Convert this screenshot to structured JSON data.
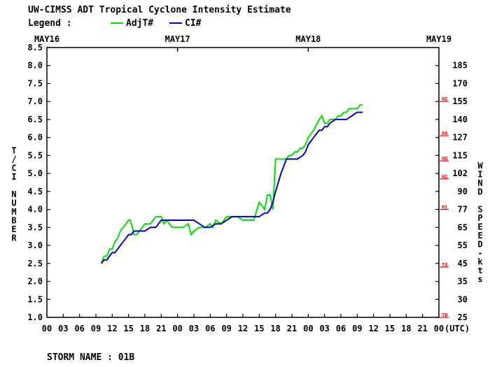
{
  "chart_data": {
    "type": "line",
    "title": "UW-CIMSS ADT Tropical Cyclone Intensity Estimate",
    "legend": {
      "label": "Legend :",
      "placement": "top-left",
      "entries": [
        {
          "name": "AdjT#",
          "color": "#00e000"
        },
        {
          "name": "CI#",
          "color": "#0000c8"
        }
      ]
    },
    "footer": "STORM NAME : 01B",
    "date_labels": [
      {
        "label": "MAY16",
        "hour": 0
      },
      {
        "label": "MAY17",
        "hour": 24
      },
      {
        "label": "MAY18",
        "hour": 48
      },
      {
        "label": "MAY19",
        "hour": 72
      }
    ],
    "xlabel": "(UTC)",
    "x_tick_labels": [
      "00",
      "03",
      "06",
      "09",
      "12",
      "15",
      "18",
      "21",
      "00",
      "03",
      "06",
      "09",
      "12",
      "15",
      "18",
      "21",
      "00",
      "03",
      "06",
      "09",
      "12",
      "15",
      "18",
      "21",
      "00"
    ],
    "xlim": [
      0,
      72
    ],
    "ylabel_left": "T/CI NUMBER",
    "ylim_left": [
      1.0,
      8.5
    ],
    "y_left_ticks": [
      "1.0",
      "1.5",
      "2.0",
      "2.5",
      "3.0",
      "3.5",
      "4.0",
      "4.5",
      "5.0",
      "5.5",
      "6.0",
      "6.5",
      "7.0",
      "7.5",
      "8.0",
      "8.5"
    ],
    "ylabel_right": "WIND SPEED-kts",
    "y_right_ticks": [
      "25",
      "30",
      "35",
      "45",
      "55",
      "65",
      "77",
      "90",
      "102",
      "115",
      "127",
      "140",
      "155",
      "170",
      "185"
    ],
    "y_right_tick_positions": [
      1.0,
      1.5,
      2.0,
      2.5,
      3.0,
      3.5,
      4.0,
      4.5,
      5.0,
      5.5,
      6.0,
      6.5,
      7.0,
      7.5,
      8.0
    ],
    "categories_right": [
      {
        "label": "TD",
        "value": 1.0
      },
      {
        "label": "TS",
        "value": 2.4
      },
      {
        "label": "H1",
        "value": 4.0
      },
      {
        "label": "H2",
        "value": 4.85
      },
      {
        "label": "H3",
        "value": 5.35
      },
      {
        "label": "H4",
        "value": 6.05
      },
      {
        "label": "H5",
        "value": 7.0
      }
    ],
    "grid": false,
    "series": [
      {
        "name": "AdjT#",
        "color": "#00e000",
        "x": [
          10,
          10.5,
          11,
          11.5,
          12,
          12.5,
          13,
          13.5,
          14,
          14.5,
          15,
          15.3,
          15.7,
          16,
          16.5,
          17,
          17.5,
          18,
          19,
          20,
          20.5,
          21,
          21.5,
          22,
          23,
          24,
          25,
          26,
          26.5,
          27,
          28,
          29,
          30,
          30.5,
          31,
          32,
          33,
          33.5,
          34,
          35,
          36,
          37,
          38,
          39,
          40,
          40.5,
          41,
          41.5,
          42,
          43,
          44,
          44.5,
          45,
          45.5,
          46,
          46.5,
          47,
          47.5,
          48,
          49,
          50,
          50.5,
          51,
          51.5,
          52,
          52.5,
          53,
          53.5,
          54,
          54.5,
          55,
          55.5,
          56,
          56.5,
          57,
          57.5,
          58
        ],
        "y": [
          2.5,
          2.7,
          2.7,
          2.9,
          2.9,
          3.1,
          3.2,
          3.4,
          3.5,
          3.6,
          3.7,
          3.7,
          3.5,
          3.3,
          3.3,
          3.4,
          3.5,
          3.6,
          3.6,
          3.8,
          3.8,
          3.8,
          3.6,
          3.7,
          3.5,
          3.5,
          3.5,
          3.6,
          3.3,
          3.4,
          3.5,
          3.5,
          3.6,
          3.5,
          3.7,
          3.6,
          3.8,
          3.8,
          3.8,
          3.8,
          3.7,
          3.7,
          3.7,
          4.2,
          4.0,
          4.4,
          4.4,
          4.0,
          5.4,
          5.4,
          5.4,
          5.5,
          5.5,
          5.6,
          5.6,
          5.7,
          5.7,
          5.8,
          6.0,
          6.2,
          6.5,
          6.6,
          6.4,
          6.4,
          6.5,
          6.5,
          6.5,
          6.6,
          6.6,
          6.7,
          6.7,
          6.8,
          6.8,
          6.8,
          6.8,
          6.9,
          6.9
        ]
      },
      {
        "name": "CI#",
        "color": "#0000c8",
        "x": [
          10,
          10.5,
          11,
          11.5,
          12,
          12.5,
          13,
          13.5,
          14,
          14.5,
          15,
          15.5,
          16,
          17,
          18,
          19,
          20,
          20.5,
          21,
          22,
          23,
          24,
          25,
          26,
          27,
          28,
          29,
          30,
          31,
          32,
          33,
          34,
          35,
          36,
          37,
          38,
          39,
          40,
          40.5,
          41,
          41.5,
          42,
          43,
          44,
          45,
          46,
          47,
          47.5,
          48,
          49,
          50,
          50.5,
          51,
          51.5,
          52,
          53,
          54,
          55,
          56,
          57,
          58
        ],
        "y": [
          2.5,
          2.6,
          2.6,
          2.7,
          2.8,
          2.8,
          2.9,
          3.0,
          3.1,
          3.2,
          3.3,
          3.3,
          3.4,
          3.4,
          3.4,
          3.5,
          3.5,
          3.6,
          3.7,
          3.7,
          3.7,
          3.7,
          3.7,
          3.7,
          3.7,
          3.6,
          3.5,
          3.5,
          3.6,
          3.6,
          3.7,
          3.8,
          3.8,
          3.8,
          3.8,
          3.8,
          3.8,
          3.9,
          3.9,
          4.0,
          4.2,
          4.5,
          5.0,
          5.4,
          5.4,
          5.4,
          5.5,
          5.6,
          5.8,
          6.0,
          6.2,
          6.2,
          6.3,
          6.3,
          6.4,
          6.5,
          6.5,
          6.5,
          6.6,
          6.7,
          6.7
        ]
      }
    ]
  }
}
